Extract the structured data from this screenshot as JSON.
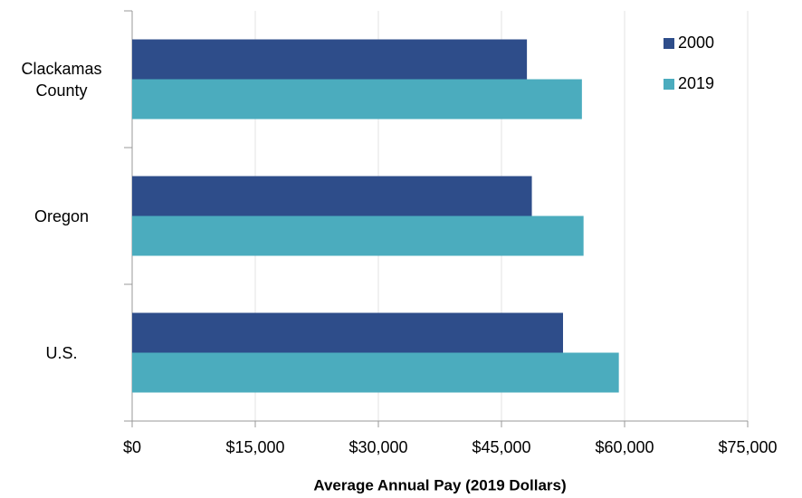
{
  "chart_data": {
    "type": "hbar",
    "categories": [
      "Clackamas County",
      "Oregon",
      "U.S."
    ],
    "series": [
      {
        "name": "2000",
        "color": "#2e4d8a",
        "values": [
          48100,
          48700,
          52500
        ]
      },
      {
        "name": "2019",
        "color": "#4bacbe",
        "values": [
          54800,
          55000,
          59300
        ]
      }
    ],
    "xlabel": "Average Annual Pay (2019 Dollars)",
    "xlim": [
      0,
      75000
    ],
    "xticks": [
      {
        "value": 0,
        "label": "$0"
      },
      {
        "value": 15000,
        "label": "$15,000"
      },
      {
        "value": 30000,
        "label": "$30,000"
      },
      {
        "value": 45000,
        "label": "$45,000"
      },
      {
        "value": 60000,
        "label": "$60,000"
      },
      {
        "value": 75000,
        "label": "$75,000"
      }
    ],
    "grid": true,
    "legend": "top-right"
  }
}
